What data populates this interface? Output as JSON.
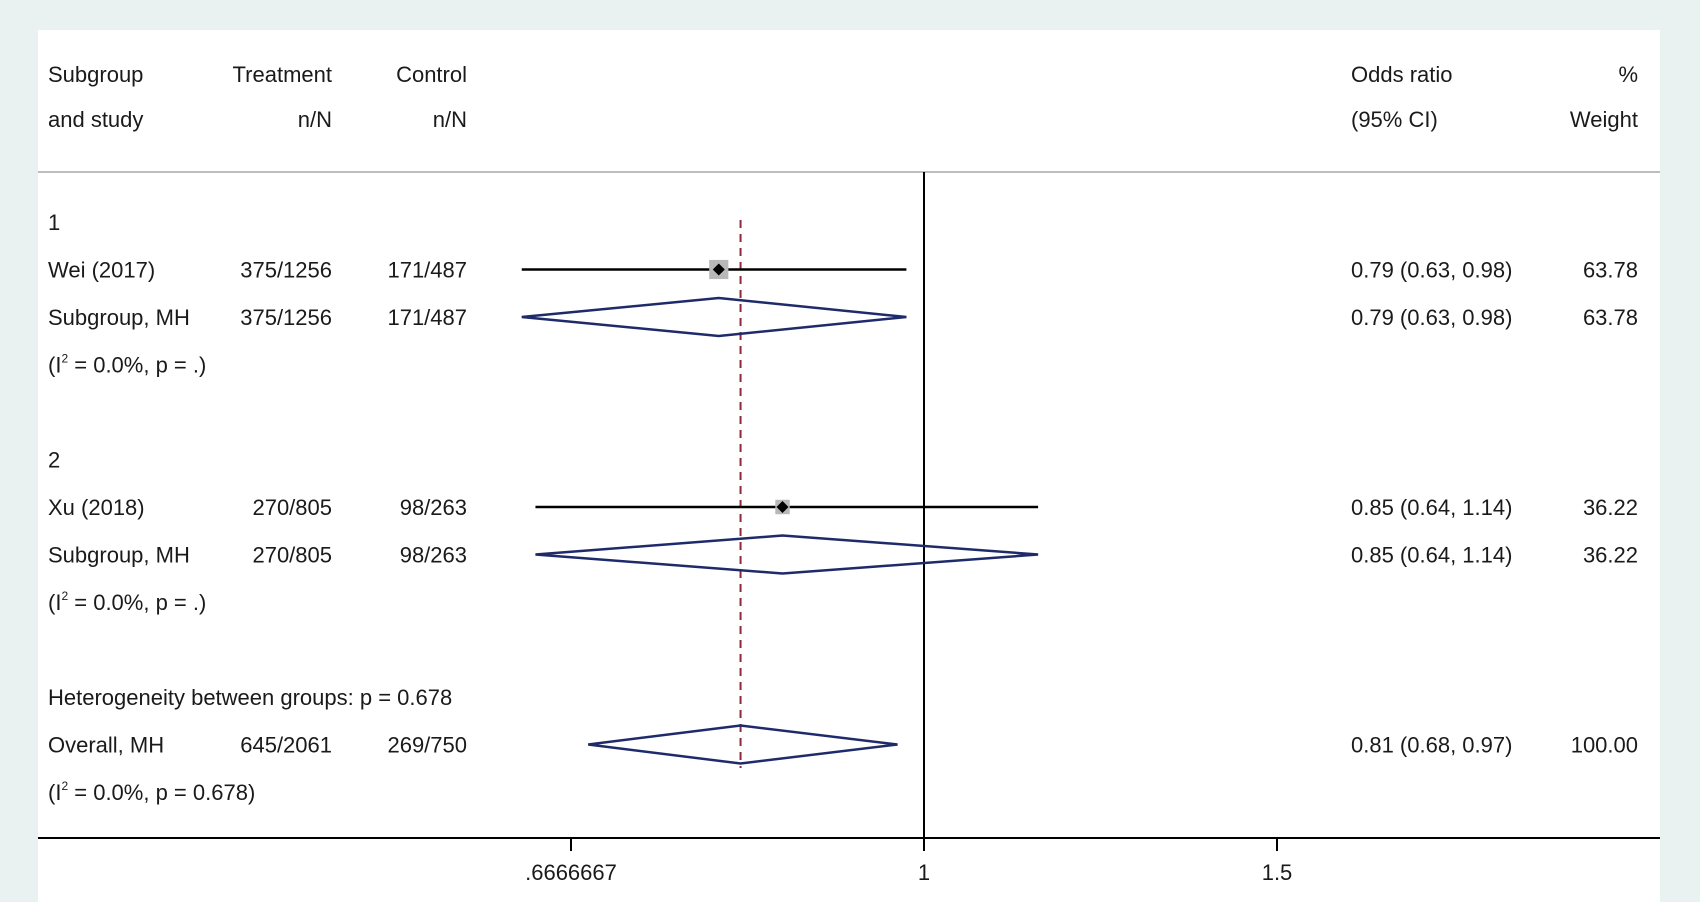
{
  "chart_data": {
    "type": "forest",
    "columns": {
      "study": [
        "Subgroup",
        "and study"
      ],
      "treatment": [
        "Treatment",
        "n/N"
      ],
      "control": [
        "Control",
        "n/N"
      ],
      "effect": [
        "Odds ratio",
        "(95% CI)"
      ],
      "weight": [
        "%",
        "Weight"
      ]
    },
    "rows": [
      {
        "kind": "group",
        "label": "1"
      },
      {
        "kind": "study",
        "label": "Wei (2017)",
        "treatment": "375/1256",
        "control": "171/487",
        "or": 0.79,
        "lo": 0.63,
        "hi": 0.98,
        "ci_text": "0.79 (0.63, 0.98)",
        "weight": "63.78"
      },
      {
        "kind": "subtotal",
        "label": "Subgroup, MH",
        "treatment": "375/1256",
        "control": "171/487",
        "or": 0.79,
        "lo": 0.63,
        "hi": 0.98,
        "ci_text": "0.79 (0.63, 0.98)",
        "weight": "63.78"
      },
      {
        "kind": "het",
        "pre": "(I",
        "sup": "2",
        "post": " = 0.0%, p = .)"
      },
      {
        "kind": "blank"
      },
      {
        "kind": "group",
        "label": "2"
      },
      {
        "kind": "study",
        "label": "Xu (2018)",
        "treatment": "270/805",
        "control": "98/263",
        "or": 0.85,
        "lo": 0.64,
        "hi": 1.14,
        "ci_text": "0.85 (0.64, 1.14)",
        "weight": "36.22"
      },
      {
        "kind": "subtotal",
        "label": "Subgroup, MH",
        "treatment": "270/805",
        "control": "98/263",
        "or": 0.85,
        "lo": 0.64,
        "hi": 1.14,
        "ci_text": "0.85 (0.64, 1.14)",
        "weight": "36.22"
      },
      {
        "kind": "het",
        "pre": "(I",
        "sup": "2",
        "post": " = 0.0%, p = .)"
      },
      {
        "kind": "blank"
      },
      {
        "kind": "note",
        "label": "Heterogeneity between groups: p = 0.678"
      },
      {
        "kind": "overall",
        "label": "Overall, MH",
        "treatment": "645/2061",
        "control": "269/750",
        "or": 0.81,
        "lo": 0.68,
        "hi": 0.97,
        "ci_text": "0.81 (0.68, 0.97)",
        "weight": "100.00"
      },
      {
        "kind": "het",
        "pre": "(I",
        "sup": "2",
        "post": " = 0.0%, p = 0.678)"
      }
    ],
    "overall_or": 0.81,
    "null_line": 1,
    "x_ticks": [
      {
        "value": 0.6666667,
        "label": ".6666667"
      },
      {
        "value": 1,
        "label": "1"
      },
      {
        "value": 1.5,
        "label": "1.5"
      }
    ],
    "xscale": "log",
    "colors": {
      "diamond": "#1f2a6b",
      "marker": "#000000",
      "box": "#b8b8b8",
      "overall_line": "#8b2a3a",
      "axis": "#000000"
    }
  }
}
